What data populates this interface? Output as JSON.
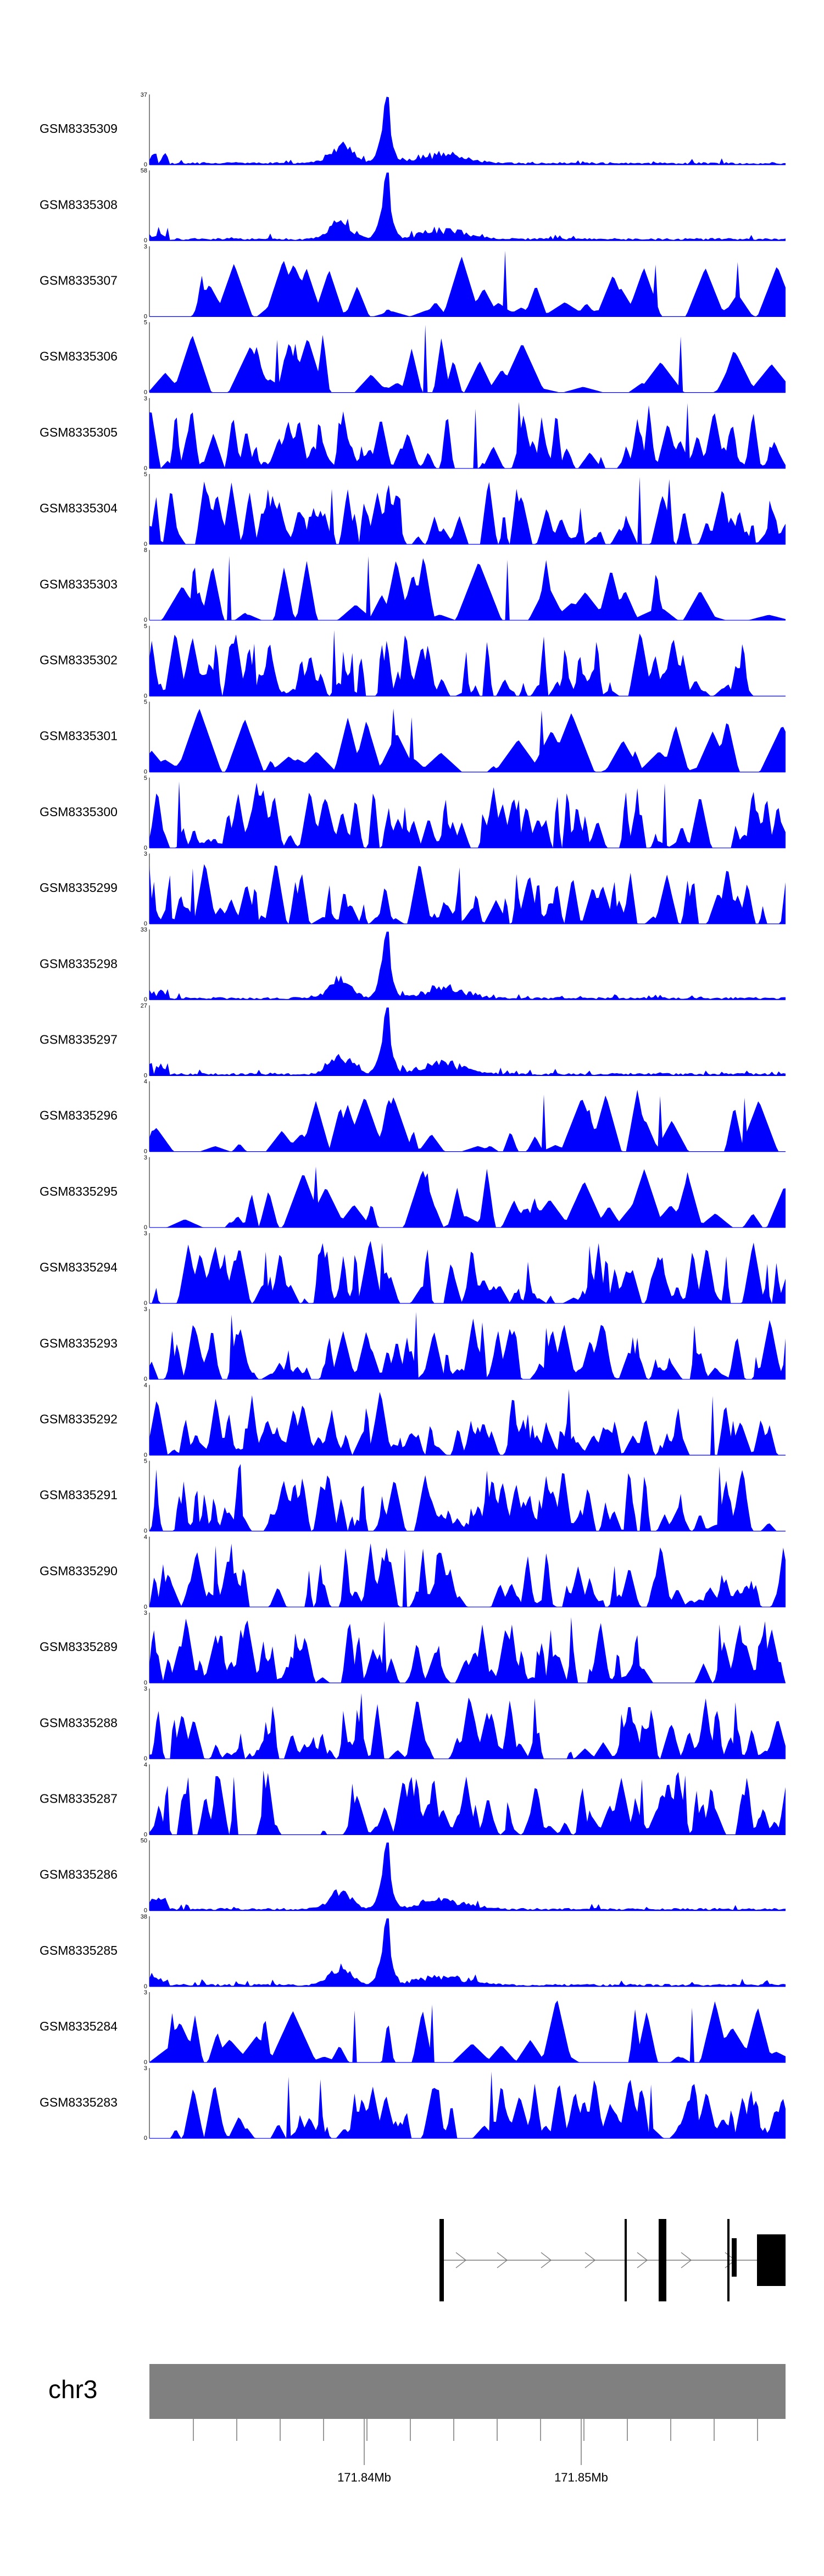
{
  "chart_data": {
    "type": "area",
    "title": "",
    "chromosome": "chr3",
    "x_ticks": [
      "171.84Mb",
      "171.85Mb"
    ],
    "colors": {
      "signal": "#0000ff",
      "ideogram": "#808080",
      "gene": "#000000"
    },
    "tracks": [
      {
        "name": "GSM8335309",
        "ymax": "37",
        "ymin": "0",
        "profile": "peak"
      },
      {
        "name": "GSM8335308",
        "ymax": "58",
        "ymin": "0",
        "profile": "peak"
      },
      {
        "name": "GSM8335307",
        "ymax": "3",
        "ymin": "0",
        "profile": "sparse"
      },
      {
        "name": "GSM8335306",
        "ymax": "5",
        "ymin": "0",
        "profile": "sparse"
      },
      {
        "name": "GSM8335305",
        "ymax": "3",
        "ymin": "0",
        "profile": "dense"
      },
      {
        "name": "GSM8335304",
        "ymax": "5",
        "ymin": "0",
        "profile": "dense"
      },
      {
        "name": "GSM8335303",
        "ymax": "8",
        "ymin": "0",
        "profile": "sparse"
      },
      {
        "name": "GSM8335302",
        "ymax": "5",
        "ymin": "0",
        "profile": "dense"
      },
      {
        "name": "GSM8335301",
        "ymax": "5",
        "ymin": "0",
        "profile": "sparse"
      },
      {
        "name": "GSM8335300",
        "ymax": "5",
        "ymin": "0",
        "profile": "dense"
      },
      {
        "name": "GSM8335299",
        "ymax": "3",
        "ymin": "0",
        "profile": "dense"
      },
      {
        "name": "GSM8335298",
        "ymax": "33",
        "ymin": "0",
        "profile": "peak"
      },
      {
        "name": "GSM8335297",
        "ymax": "27",
        "ymin": "0",
        "profile": "peak"
      },
      {
        "name": "GSM8335296",
        "ymax": "4",
        "ymin": "0",
        "profile": "sparse"
      },
      {
        "name": "GSM8335295",
        "ymax": "3",
        "ymin": "0",
        "profile": "sparse"
      },
      {
        "name": "GSM8335294",
        "ymax": "3",
        "ymin": "0",
        "profile": "dense"
      },
      {
        "name": "GSM8335293",
        "ymax": "3",
        "ymin": "0",
        "profile": "dense"
      },
      {
        "name": "GSM8335292",
        "ymax": "4",
        "ymin": "0",
        "profile": "dense"
      },
      {
        "name": "GSM8335291",
        "ymax": "5",
        "ymin": "0",
        "profile": "dense"
      },
      {
        "name": "GSM8335290",
        "ymax": "4",
        "ymin": "0",
        "profile": "dense"
      },
      {
        "name": "GSM8335289",
        "ymax": "3",
        "ymin": "0",
        "profile": "dense"
      },
      {
        "name": "GSM8335288",
        "ymax": "3",
        "ymin": "0",
        "profile": "dense"
      },
      {
        "name": "GSM8335287",
        "ymax": "4",
        "ymin": "0",
        "profile": "dense"
      },
      {
        "name": "GSM8335286",
        "ymax": "50",
        "ymin": "0",
        "profile": "peak"
      },
      {
        "name": "GSM8335285",
        "ymax": "38",
        "ymin": "0",
        "profile": "peak"
      },
      {
        "name": "GSM8335284",
        "ymax": "3",
        "ymin": "0",
        "profile": "sparse"
      },
      {
        "name": "GSM8335283",
        "ymax": "3",
        "ymin": "0",
        "profile": "dense"
      }
    ]
  }
}
